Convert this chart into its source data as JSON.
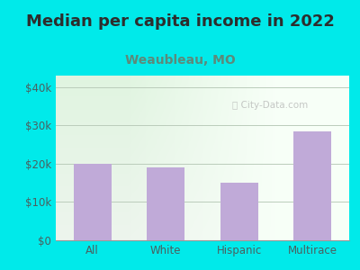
{
  "title": "Median per capita income in 2022",
  "subtitle": "Weaubleau, MO",
  "categories": [
    "All",
    "White",
    "Hispanic",
    "Multirace"
  ],
  "values": [
    20000,
    19000,
    15000,
    28500
  ],
  "bar_color": "#c0aad8",
  "title_color": "#2d2d2d",
  "subtitle_color": "#5c8a7a",
  "outer_bg": "#00eaea",
  "yticks": [
    0,
    10000,
    20000,
    30000,
    40000
  ],
  "ytick_labels": [
    "$0",
    "$10k",
    "$20k",
    "$30k",
    "$40k"
  ],
  "ylim": [
    0,
    43000
  ],
  "watermark": "City-Data.com",
  "title_fontsize": 13,
  "subtitle_fontsize": 10,
  "tick_fontsize": 8.5,
  "tick_color": "#4a6060"
}
